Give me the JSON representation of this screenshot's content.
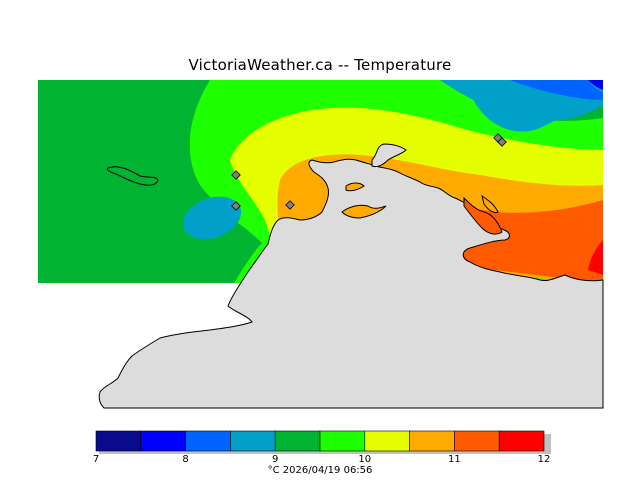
{
  "title": "VictoriaWeather.ca  --  Temperature",
  "legend": {
    "unit": "°C",
    "timestamp": "2026/04/19 06:56",
    "range": [
      7,
      12
    ],
    "tick_labels": [
      "7",
      "8",
      "9",
      "10",
      "11",
      "12"
    ],
    "bins": [
      {
        "from": 7.0,
        "to": 7.5,
        "color": "#0a0a8c"
      },
      {
        "from": 7.5,
        "to": 8.0,
        "color": "#0000ff"
      },
      {
        "from": 8.0,
        "to": 8.5,
        "color": "#0064ff"
      },
      {
        "from": 8.5,
        "to": 9.0,
        "color": "#00a0c8"
      },
      {
        "from": 9.0,
        "to": 9.5,
        "color": "#00b432"
      },
      {
        "from": 9.5,
        "to": 10.0,
        "color": "#1eff00"
      },
      {
        "from": 10.0,
        "to": 10.5,
        "color": "#e6ff00"
      },
      {
        "from": 10.5,
        "to": 11.0,
        "color": "#ffaa00"
      },
      {
        "from": 11.0,
        "to": 11.5,
        "color": "#ff5a00"
      },
      {
        "from": 11.5,
        "to": 12.0,
        "color": "#ff0000"
      }
    ]
  },
  "colors": {
    "land": "#dcdcdc",
    "coastline": "#000000",
    "station_marker": "#808080"
  }
}
